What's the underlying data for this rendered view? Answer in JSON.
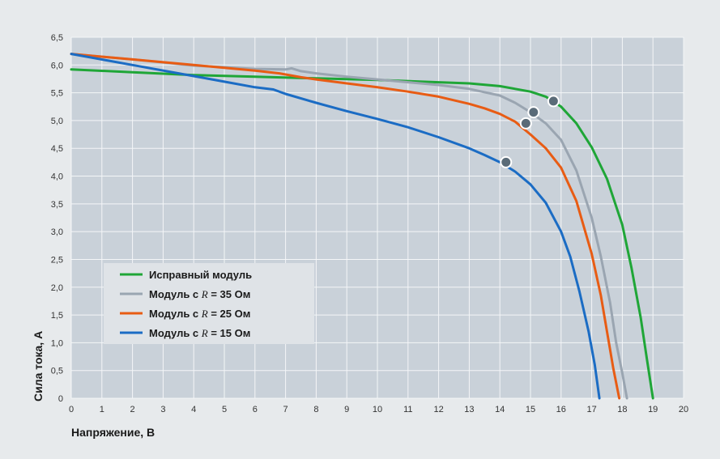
{
  "chart_data": {
    "type": "line",
    "xlabel": "Напряжение, В",
    "ylabel": "Сила тока, А",
    "xlim": [
      0,
      20
    ],
    "ylim": [
      0,
      6.5
    ],
    "x_ticks": [
      "0",
      "1",
      "2",
      "3",
      "4",
      "5",
      "6",
      "7",
      "8",
      "9",
      "10",
      "11",
      "12",
      "13",
      "14",
      "15",
      "16",
      "17",
      "18",
      "19",
      "20"
    ],
    "y_ticks": [
      "0",
      "0,5",
      "1,0",
      "1,5",
      "2,0",
      "2,5",
      "3,0",
      "3,5",
      "4,0",
      "4,5",
      "5,0",
      "5,5",
      "6,0",
      "6,5"
    ],
    "grid": true,
    "legend_position": "bottom-left",
    "series": [
      {
        "name": "Исправный модуль",
        "legend_prefix": "Исправный модуль",
        "legend_var": "",
        "legend_suffix": "",
        "color": "#1fa637",
        "x": [
          0,
          2,
          4,
          6,
          8,
          10,
          12,
          13,
          14,
          15,
          15.5,
          16,
          16.5,
          17,
          17.5,
          18,
          18.3,
          18.6,
          18.8,
          19.0
        ],
        "y": [
          5.92,
          5.87,
          5.82,
          5.79,
          5.76,
          5.73,
          5.69,
          5.67,
          5.62,
          5.52,
          5.43,
          5.25,
          4.95,
          4.52,
          3.95,
          3.12,
          2.35,
          1.45,
          0.72,
          0
        ],
        "mpp": {
          "x": 15.75,
          "y": 5.35
        }
      },
      {
        "name": "Модуль с R = 35 Ом",
        "legend_prefix": "Модуль с ",
        "legend_var": "R",
        "legend_suffix": " = 35 Ом",
        "color": "#9aa5b1",
        "x": [
          0,
          2,
          4,
          6,
          7,
          7.2,
          7.5,
          8,
          9,
          10,
          11,
          12,
          13,
          14,
          14.5,
          15,
          15.5,
          16,
          16.5,
          17,
          17.3,
          17.6,
          17.8,
          18.0,
          18.15
        ],
        "y": [
          6.2,
          6.1,
          5.99,
          5.93,
          5.92,
          5.94,
          5.89,
          5.85,
          5.79,
          5.74,
          5.69,
          5.64,
          5.57,
          5.45,
          5.32,
          5.15,
          4.95,
          4.65,
          4.1,
          3.25,
          2.55,
          1.72,
          1.0,
          0.45,
          0
        ],
        "mpp": {
          "x": 15.1,
          "y": 5.15
        }
      },
      {
        "name": "Модуль с R = 25 Ом",
        "legend_prefix": "Модуль с ",
        "legend_var": "R",
        "legend_suffix": " = 25 Ом",
        "color": "#e85c14",
        "x": [
          0,
          2,
          4,
          6,
          6.8,
          7.5,
          8,
          9,
          10,
          11,
          12,
          13,
          13.5,
          14,
          14.5,
          15,
          15.5,
          16,
          16.5,
          17,
          17.3,
          17.5,
          17.7,
          17.9
        ],
        "y": [
          6.2,
          6.1,
          6.0,
          5.9,
          5.85,
          5.78,
          5.74,
          5.67,
          5.6,
          5.52,
          5.43,
          5.3,
          5.22,
          5.12,
          4.98,
          4.75,
          4.5,
          4.15,
          3.55,
          2.6,
          1.85,
          1.2,
          0.55,
          0
        ],
        "mpp": {
          "x": 14.85,
          "y": 4.95
        }
      },
      {
        "name": "Модуль с R = 15 Ом",
        "legend_prefix": "Модуль с ",
        "legend_var": "R",
        "legend_suffix": " = 15 Ом",
        "color": "#1b6cc4",
        "x": [
          0,
          2,
          4,
          5,
          6,
          6.6,
          7,
          8,
          9,
          10,
          11,
          12,
          13,
          13.5,
          14,
          14.5,
          15,
          15.5,
          16,
          16.3,
          16.6,
          16.9,
          17.1,
          17.25
        ],
        "y": [
          6.2,
          6.0,
          5.8,
          5.7,
          5.6,
          5.56,
          5.48,
          5.32,
          5.17,
          5.03,
          4.88,
          4.7,
          4.5,
          4.38,
          4.25,
          4.08,
          3.85,
          3.52,
          3.0,
          2.55,
          1.92,
          1.2,
          0.6,
          0
        ],
        "mpp": {
          "x": 14.2,
          "y": 4.25
        }
      }
    ]
  }
}
